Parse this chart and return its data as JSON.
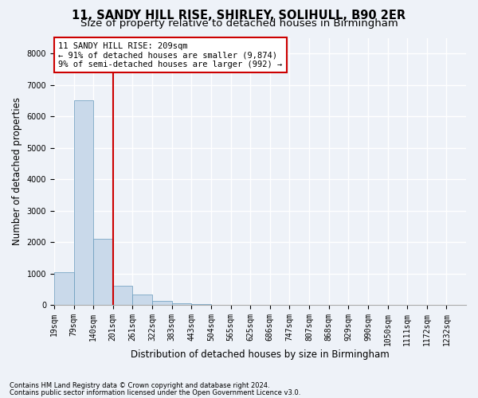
{
  "title": "11, SANDY HILL RISE, SHIRLEY, SOLIHULL, B90 2ER",
  "subtitle": "Size of property relative to detached houses in Birmingham",
  "xlabel": "Distribution of detached houses by size in Birmingham",
  "ylabel": "Number of detached properties",
  "annotation_line1": "11 SANDY HILL RISE: 209sqm",
  "annotation_line2": "← 91% of detached houses are smaller (9,874)",
  "annotation_line3": "9% of semi-detached houses are larger (992) →",
  "footnote1": "Contains HM Land Registry data © Crown copyright and database right 2024.",
  "footnote2": "Contains public sector information licensed under the Open Government Licence v3.0.",
  "bin_labels": [
    "19sqm",
    "79sqm",
    "140sqm",
    "201sqm",
    "261sqm",
    "322sqm",
    "383sqm",
    "443sqm",
    "504sqm",
    "565sqm",
    "625sqm",
    "686sqm",
    "747sqm",
    "807sqm",
    "868sqm",
    "929sqm",
    "990sqm",
    "1050sqm",
    "1111sqm",
    "1172sqm",
    "1232sqm"
  ],
  "bar_values": [
    1050,
    6500,
    2100,
    600,
    320,
    120,
    50,
    30,
    0,
    0,
    0,
    0,
    0,
    0,
    0,
    0,
    0,
    0,
    0,
    0
  ],
  "bar_color": "#c9d9ea",
  "bar_edgecolor": "#6699bb",
  "vline_color": "#cc0000",
  "box_color": "#cc0000",
  "ylim": [
    0,
    8500
  ],
  "yticks": [
    0,
    1000,
    2000,
    3000,
    4000,
    5000,
    6000,
    7000,
    8000
  ],
  "background_color": "#eef2f8",
  "grid_color": "#ffffff",
  "title_fontsize": 10.5,
  "subtitle_fontsize": 9.5,
  "axis_label_fontsize": 8.5,
  "tick_fontsize": 7,
  "annotation_fontsize": 7.5,
  "footnote_fontsize": 6
}
